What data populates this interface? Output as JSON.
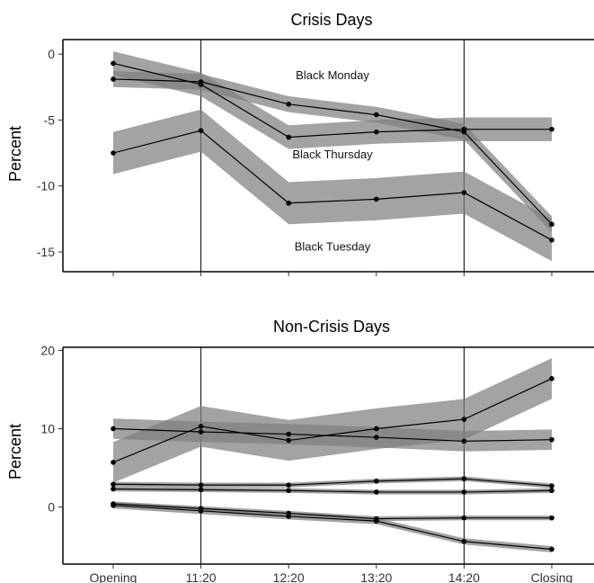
{
  "chart_data": [
    {
      "type": "line",
      "title": "Crisis Days",
      "ylabel": "Percent",
      "xlabel": "",
      "categories": [
        "Opening",
        "11:20",
        "12:20",
        "13:20",
        "14:20",
        "Closing"
      ],
      "show_x_tick_labels": false,
      "ylim": [
        -16.5,
        1.1
      ],
      "yticks": [
        0,
        -5,
        -10,
        -15
      ],
      "ytick_labels": [
        "0",
        "-5",
        "-10",
        "-15"
      ],
      "vlines": [
        "11:20",
        "14:20"
      ],
      "band_color": "#808080",
      "line_color": "#000000",
      "series": [
        {
          "values": [
            -0.7,
            -2.3,
            -6.3,
            -5.9,
            -5.7,
            -5.7
          ],
          "ci": 0.9
        },
        {
          "values": [
            -1.9,
            -2.1,
            -3.8,
            -4.6,
            -5.9,
            -12.9
          ],
          "ci": 0.6
        },
        {
          "values": [
            -7.5,
            -5.8,
            -11.3,
            -11.0,
            -10.5,
            -14.1
          ],
          "ci": 1.6
        }
      ],
      "annotations": [
        {
          "text": "Black Monday",
          "x": 2.5,
          "y": -1.9
        },
        {
          "text": "Black Thursday",
          "x": 2.5,
          "y": -7.9
        },
        {
          "text": "Black Tuesday",
          "x": 2.5,
          "y": -14.9
        }
      ]
    },
    {
      "type": "line",
      "title": "Non-Crisis Days",
      "ylabel": "Percent",
      "xlabel": "",
      "categories": [
        "Opening",
        "11:20",
        "12:20",
        "13:20",
        "14:20",
        "Closing"
      ],
      "show_x_tick_labels": true,
      "ylim": [
        -7.3,
        20.4
      ],
      "yticks": [
        20,
        10,
        0
      ],
      "ytick_labels": [
        "20",
        "10",
        "0"
      ],
      "vlines": [
        "11:20",
        "14:20"
      ],
      "band_color": "#808080",
      "line_color": "#000000",
      "series": [
        {
          "values": [
            5.7,
            10.3,
            8.5,
            10.0,
            11.2,
            16.4
          ],
          "ci": 2.6
        },
        {
          "values": [
            10.0,
            9.6,
            9.3,
            8.9,
            8.4,
            8.6
          ],
          "ci": 1.3
        },
        {
          "values": [
            2.9,
            2.8,
            2.8,
            3.3,
            3.6,
            2.7
          ],
          "ci": 0.3
        },
        {
          "values": [
            2.3,
            2.2,
            2.1,
            1.9,
            1.9,
            2.1
          ],
          "ci": 0.3
        },
        {
          "values": [
            0.4,
            -0.2,
            -0.8,
            -1.5,
            -1.4,
            -1.4
          ],
          "ci": 0.3
        },
        {
          "values": [
            0.2,
            -0.5,
            -1.2,
            -1.8,
            -4.4,
            -5.4
          ],
          "ci": 0.4
        }
      ],
      "annotations": []
    }
  ]
}
